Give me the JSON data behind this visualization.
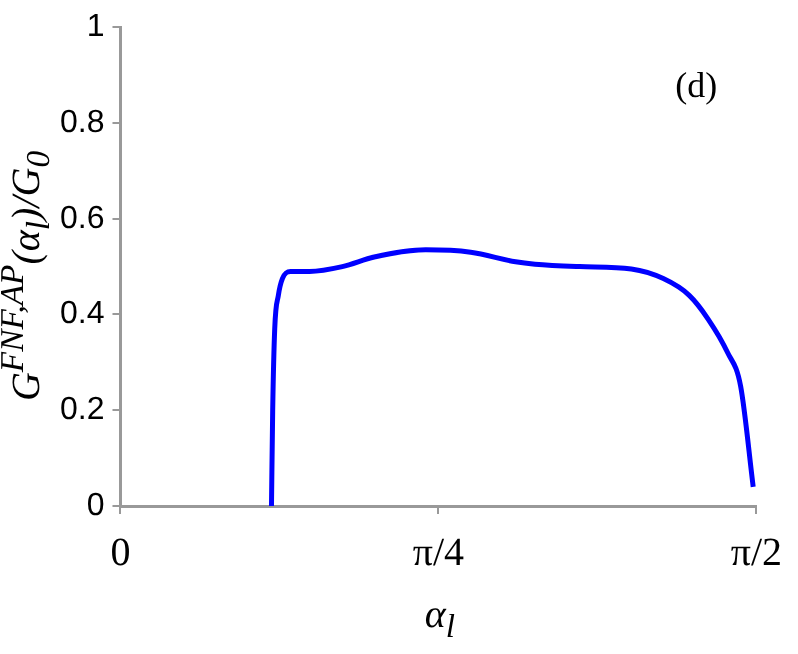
{
  "chart_data": {
    "type": "line",
    "xlabel": "α$_{l}$",
    "ylabel": "G$^{FNF,AP}$(α$_{l}$)/G$_{0}$",
    "annotations": [
      "(d)"
    ],
    "x": [
      0.373,
      0.376,
      0.381,
      0.39,
      0.4,
      0.42,
      0.467,
      0.548,
      0.627,
      0.754,
      0.865,
      0.976,
      1.024,
      1.134,
      1.262,
      1.341,
      1.405,
      1.452,
      1.5,
      1.532,
      1.563
    ],
    "series": [
      {
        "color": "#0000ff",
        "values": [
          0,
          0.2,
          0.37,
          0.44,
          0.475,
          0.49,
          0.49,
          0.5,
          0.52,
          0.535,
          0.53,
          0.51,
          0.505,
          0.5,
          0.495,
          0.475,
          0.44,
          0.39,
          0.32,
          0.25,
          0.04
        ]
      }
    ],
    "xlim": [
      0,
      1.5708
    ],
    "xticks": [
      {
        "value": 0,
        "label": "0"
      },
      {
        "value": 0.7854,
        "label": "π/4"
      },
      {
        "value": 1.5708,
        "label": "π/2"
      }
    ],
    "ylim": [
      0,
      1
    ],
    "yticks": [
      0,
      0.2,
      0.4,
      0.6,
      0.8,
      1
    ],
    "grid": false,
    "legend": false,
    "line_style": "solid",
    "marker": "none"
  }
}
